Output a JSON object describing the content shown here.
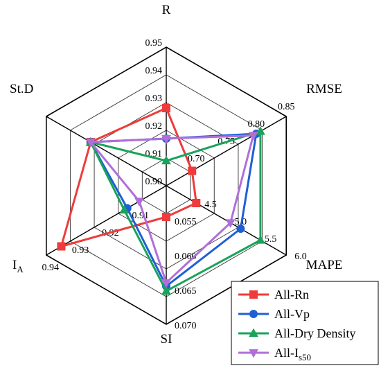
{
  "chart_data": {
    "type": "radar",
    "axes": [
      {
        "key": "R",
        "label": "R",
        "ticks": [
          "0.90",
          "0.91",
          "0.92",
          "0.93",
          "0.94",
          "0.95"
        ]
      },
      {
        "key": "RMSE",
        "label": "RMSE",
        "ticks": [
          "0.70",
          "0.75",
          "0.80",
          "0.85"
        ]
      },
      {
        "key": "MAPE",
        "label": "MAPE",
        "ticks": [
          "4.5",
          "5.0",
          "5.5",
          "6.0"
        ]
      },
      {
        "key": "SI",
        "label": "SI",
        "ticks": [
          "0.055",
          "0.060",
          "0.065",
          "0.070"
        ]
      },
      {
        "key": "IA",
        "label": "I",
        "label_sub": "A",
        "ticks": [
          "0.91",
          "0.92",
          "0.93",
          "0.94"
        ]
      },
      {
        "key": "StD",
        "label": "St.D",
        "ticks": []
      }
    ],
    "series": [
      {
        "name": "All-Rn",
        "color": "#ee3b3b",
        "marker": "square",
        "values": {
          "R": 0.928,
          "RMSE": 0.693,
          "MAPE": 4.5,
          "SI": 0.0545,
          "IA": 0.935,
          "StD": 0.63
        }
      },
      {
        "name": "All-Vp",
        "color": "#1f5fd6",
        "marker": "circle",
        "values": {
          "R": 0.917,
          "RMSE": 0.8,
          "MAPE": 5.24,
          "SI": 0.0645,
          "IA": 0.913,
          "StD": 0.63
        }
      },
      {
        "name": "All-Dry Density",
        "color": "#1aa35a",
        "marker": "triangle-up",
        "values": {
          "R": 0.909,
          "RMSE": 0.807,
          "MAPE": 5.57,
          "SI": 0.0652,
          "IA": 0.914,
          "StD": 0.63
        }
      },
      {
        "name": "All-I",
        "name_sub": "s50",
        "color": "#b06fd8",
        "marker": "triangle-down",
        "values": {
          "R": 0.917,
          "RMSE": 0.795,
          "MAPE": 5.07,
          "SI": 0.064,
          "IA": 0.909,
          "StD": 0.63
        }
      }
    ],
    "legend": {
      "position": "bottom-right"
    }
  }
}
